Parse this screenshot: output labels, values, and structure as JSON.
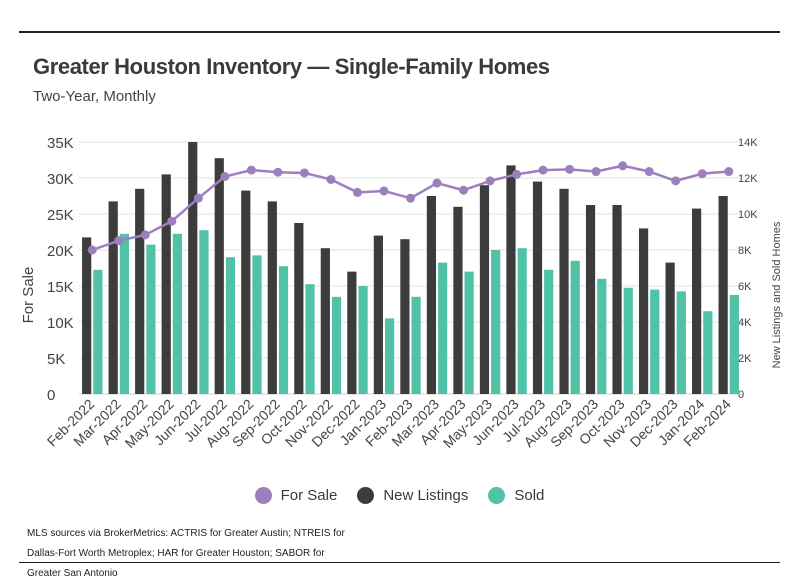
{
  "header": {
    "title": "Greater Houston Inventory — Single-Family Homes",
    "subtitle": "Two-Year, Monthly"
  },
  "legend": {
    "items": [
      {
        "label": "For Sale",
        "color": "#9d7fbd"
      },
      {
        "label": "New Listings",
        "color": "#3c3c3c"
      },
      {
        "label": "Sold",
        "color": "#4fc2a8"
      }
    ]
  },
  "footer": {
    "source": "MLS sources via BrokerMetrics: ACTRIS for Greater Austin; NTREIS for Dallas-Fort Worth Metroplex; HAR for Greater Houston; SABOR for Greater San Antonio"
  },
  "chart_data": {
    "type": "bar",
    "title": "Greater Houston Inventory — Single-Family Homes",
    "subtitle": "Two-Year, Monthly",
    "ylabel": "For Sale",
    "y2label": "New Listings and Sold Homes",
    "ylim": [
      0,
      35000
    ],
    "y2lim": [
      0,
      14000
    ],
    "left_tick_labels": [
      "0",
      "5K",
      "10K",
      "15K",
      "20K",
      "25K",
      "30K",
      "35K"
    ],
    "right_tick_labels": [
      "0",
      "2K",
      "4K",
      "6K",
      "8K",
      "10K",
      "12K",
      "14K"
    ],
    "grid": true,
    "legend_position": "bottom",
    "categories": [
      "Feb-2022",
      "Mar-2022",
      "Apr-2022",
      "May-2022",
      "Jun-2022",
      "Jul-2022",
      "Aug-2022",
      "Sep-2022",
      "Oct-2022",
      "Nov-2022",
      "Dec-2022",
      "Jan-2023",
      "Feb-2023",
      "Mar-2023",
      "Apr-2023",
      "May-2023",
      "Jun-2023",
      "Jul-2023",
      "Aug-2023",
      "Sep-2023",
      "Oct-2023",
      "Nov-2023",
      "Dec-2023",
      "Jan-2024",
      "Feb-2024"
    ],
    "series": [
      {
        "name": "New Listings",
        "type": "bar",
        "axis": "right",
        "color": "#3c3c3c",
        "values": [
          8700,
          10700,
          11400,
          12200,
          14000,
          13100,
          11300,
          10700,
          9500,
          8100,
          6800,
          8800,
          8600,
          11000,
          10400,
          11600,
          12700,
          11800,
          11400,
          10500,
          10500,
          9200,
          7300,
          10300,
          11000
        ]
      },
      {
        "name": "Sold",
        "type": "bar",
        "axis": "right",
        "color": "#4fc2a8",
        "values": [
          6900,
          8900,
          8300,
          8900,
          9100,
          7600,
          7700,
          7100,
          6100,
          5400,
          6000,
          4200,
          5400,
          7300,
          6800,
          8000,
          8100,
          6900,
          7400,
          6400,
          5900,
          5800,
          5700,
          4600,
          5500
        ]
      },
      {
        "name": "For Sale",
        "type": "line",
        "axis": "left",
        "color": "#9d7fbd",
        "values": [
          20000,
          21300,
          22100,
          24000,
          27200,
          30200,
          31100,
          30800,
          30700,
          29800,
          28000,
          28200,
          27200,
          29300,
          28300,
          29600,
          30500,
          31100,
          31200,
          30900,
          31700,
          30900,
          29600,
          30600,
          30900
        ]
      }
    ]
  }
}
